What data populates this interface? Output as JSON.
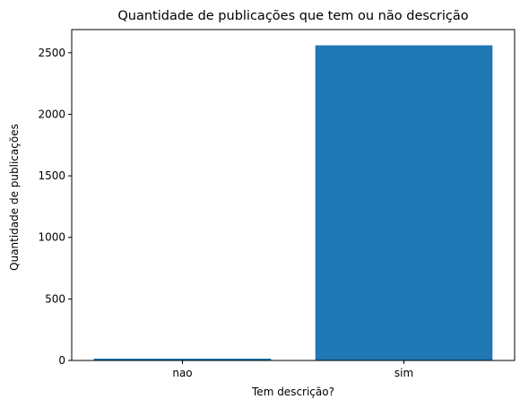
{
  "chart_data": {
    "type": "bar",
    "title": "Quantidade de publicações que tem ou não descrição",
    "xlabel": "Tem descrição?",
    "ylabel": "Quantidade de publicações",
    "categories": [
      "nao",
      "sim"
    ],
    "values": [
      15,
      2560
    ],
    "ylim": [
      0,
      2688
    ],
    "yticks": [
      0,
      500,
      1000,
      1500,
      2000,
      2500
    ],
    "grid": false,
    "bar_color": "#1f77b4"
  }
}
